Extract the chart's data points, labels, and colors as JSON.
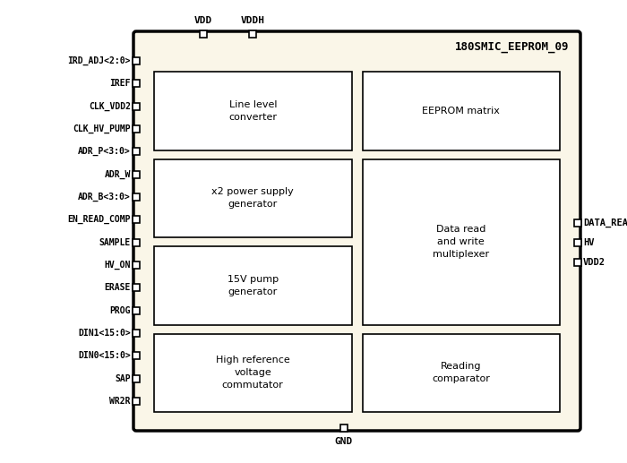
{
  "title": "180SMIC_EEPROM_09",
  "bg_color": "#faf6e8",
  "border_color": "#000000",
  "box_color": "#ffffff",
  "figsize": [
    7.0,
    5.17
  ],
  "dpi": 100,
  "left_pins": [
    "IRD_ADJ<2:0>",
    "IREF",
    "CLK_VDD2",
    "CLK_HV_PUMP",
    "ADR_P<3:0>",
    "ADR_W",
    "ADR_B<3:0>",
    "EN_READ_COMP",
    "SAMPLE",
    "HV_ON",
    "ERASE",
    "PROG",
    "DIN1<15:0>",
    "DIN0<15:0>",
    "SAP",
    "WR2R"
  ],
  "right_pins": [
    "DATA_READ",
    "HV",
    "VDD2"
  ],
  "top_pins": [
    "VDD",
    "VDDH"
  ],
  "bottom_pins": [
    "GND"
  ],
  "inner_boxes_left": [
    {
      "label": "Line level\nconverter",
      "row": 0
    },
    {
      "label": "x2 power supply\ngenerator",
      "row": 1
    },
    {
      "label": "15V pump\ngenerator",
      "row": 2
    },
    {
      "label": "High reference\nvoltage\ncommutator",
      "row": 3
    }
  ],
  "inner_boxes_right": [
    {
      "label": "EEPROM matrix",
      "row": 0,
      "span": 1
    },
    {
      "label": "Data read\nand write\nmultiplexer",
      "row": 1,
      "span": 2
    },
    {
      "label": "Reading\ncomparator",
      "row": 3,
      "span": 1
    }
  ]
}
